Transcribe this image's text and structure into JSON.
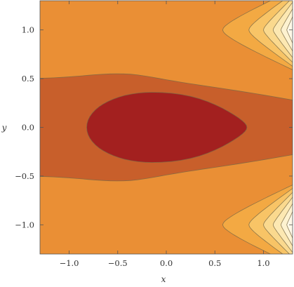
{
  "chart_data": {
    "type": "heatmap",
    "subtype": "filled-contour",
    "title": "",
    "xlabel": "x",
    "ylabel": "y",
    "xlim": [
      -1.3,
      1.3
    ],
    "ylim": [
      -1.3,
      1.3
    ],
    "x_ticks": [
      {
        "value": -1.0,
        "label": "−1.0"
      },
      {
        "value": -0.5,
        "label": "−0.5"
      },
      {
        "value": 0.0,
        "label": "0.0"
      },
      {
        "value": 0.5,
        "label": "0.5"
      },
      {
        "value": 1.0,
        "label": "1.0"
      }
    ],
    "y_ticks": [
      {
        "value": 1.0,
        "label": "1.0"
      },
      {
        "value": 0.5,
        "label": "0.5"
      },
      {
        "value": 0.0,
        "label": "0.0"
      },
      {
        "value": -0.5,
        "label": "−0.5"
      },
      {
        "value": -1.0,
        "label": "−1.0"
      }
    ],
    "grid": false,
    "legend": "none",
    "color_levels": [
      "#a3201f",
      "#c85f2b",
      "#ea8f35",
      "#f3a943",
      "#f8c466",
      "#fad98e",
      "#fce8b2",
      "#fdf2d0",
      "#fef8e6"
    ],
    "boundary_color": "#7a6a45",
    "features": {
      "minimum_center": [
        -0.15,
        0.0
      ],
      "maxima_near": [
        [
          1.3,
          1.0
        ],
        [
          1.3,
          -1.0
        ]
      ]
    }
  }
}
